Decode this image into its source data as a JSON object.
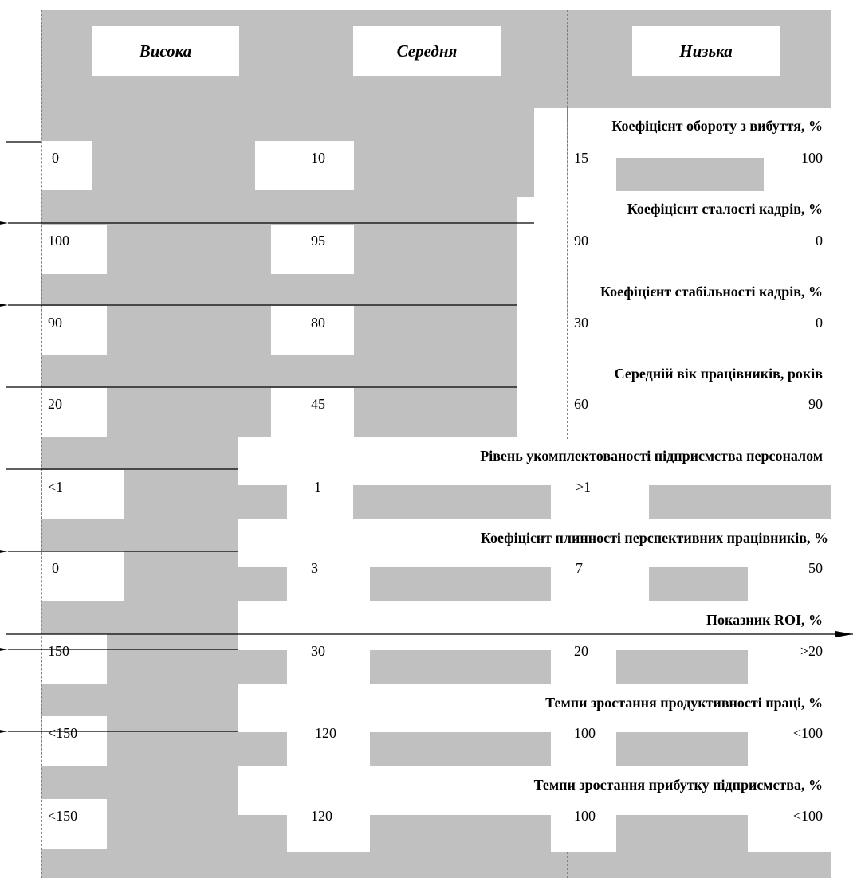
{
  "headers": [
    "Висока",
    "Середня",
    "Низька"
  ],
  "indicators": [
    {
      "title": "Коефіцієнт обороту з вибуття, %",
      "values": [
        "0",
        "10",
        "15",
        "100"
      ]
    },
    {
      "title": "Коефіцієнт сталості кадрів, %",
      "values": [
        "100",
        "95",
        "90",
        "0"
      ]
    },
    {
      "title": "Коефіцієнт стабільності кадрів, %",
      "values": [
        "90",
        "80",
        "30",
        "0"
      ]
    },
    {
      "title": "Середній вік працівників, років",
      "values": [
        "20",
        "45",
        "60",
        "90"
      ]
    },
    {
      "title": "Рівень укомплектованості підприємства персоналом",
      "values": [
        "<1",
        "1",
        ">1",
        ""
      ]
    },
    {
      "title": "Коефіцієнт плинності перспективних працівників, %",
      "values": [
        "0",
        "3",
        "7",
        "50"
      ]
    },
    {
      "title": "Показник ROI, %",
      "values": [
        "150",
        "30",
        "20",
        ">20"
      ]
    },
    {
      "title": "Темпи зростання продуктивності праці, %",
      "values": [
        "<150",
        "120",
        "100",
        "<100"
      ]
    },
    {
      "title": "Темпи зростання прибутку підприємства, %",
      "values": [
        "<150",
        "120",
        "100",
        "<100"
      ]
    }
  ]
}
